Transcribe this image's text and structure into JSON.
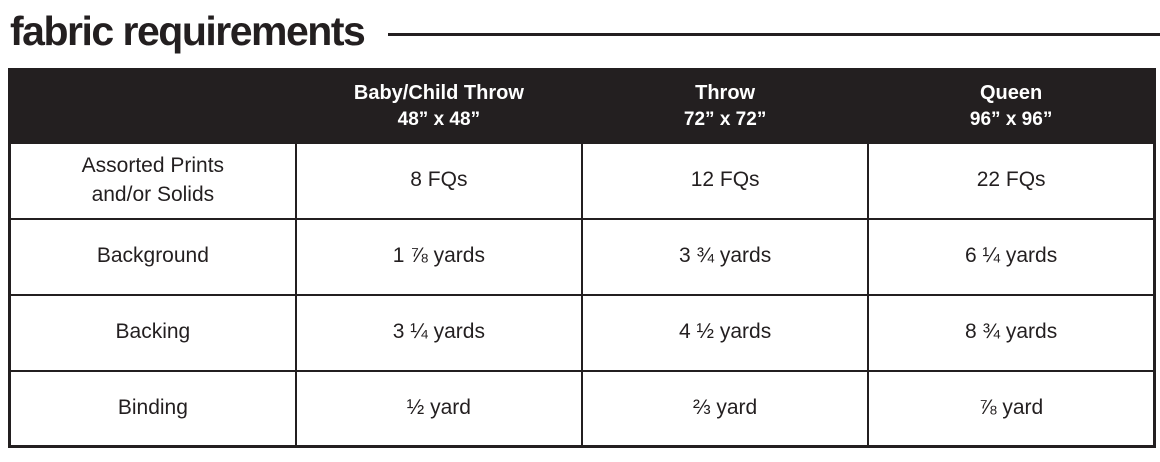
{
  "page_title": "fabric requirements",
  "accent_color": "#231f20",
  "table": {
    "column_headers": [
      {
        "name": "Baby/Child Throw",
        "size": "48” x 48”"
      },
      {
        "name": "Throw",
        "size": "72” x 72”"
      },
      {
        "name": "Queen",
        "size": "96” x 96”"
      }
    ],
    "rows": [
      {
        "label_lines": [
          "Assorted Prints",
          "and/or Solids"
        ],
        "values": [
          "8 FQs",
          "12 FQs",
          "22 FQs"
        ]
      },
      {
        "label_lines": [
          "Background",
          ""
        ],
        "values": [
          "1 ⅞ yards",
          "3 ¾ yards",
          "6 ¼ yards"
        ]
      },
      {
        "label_lines": [
          "Backing",
          ""
        ],
        "values": [
          "3 ¼ yards",
          "4 ½ yards",
          "8 ¾ yards"
        ]
      },
      {
        "label_lines": [
          "Binding",
          ""
        ],
        "values": [
          "½ yard",
          "⅔ yard",
          "⅞ yard"
        ]
      }
    ]
  }
}
